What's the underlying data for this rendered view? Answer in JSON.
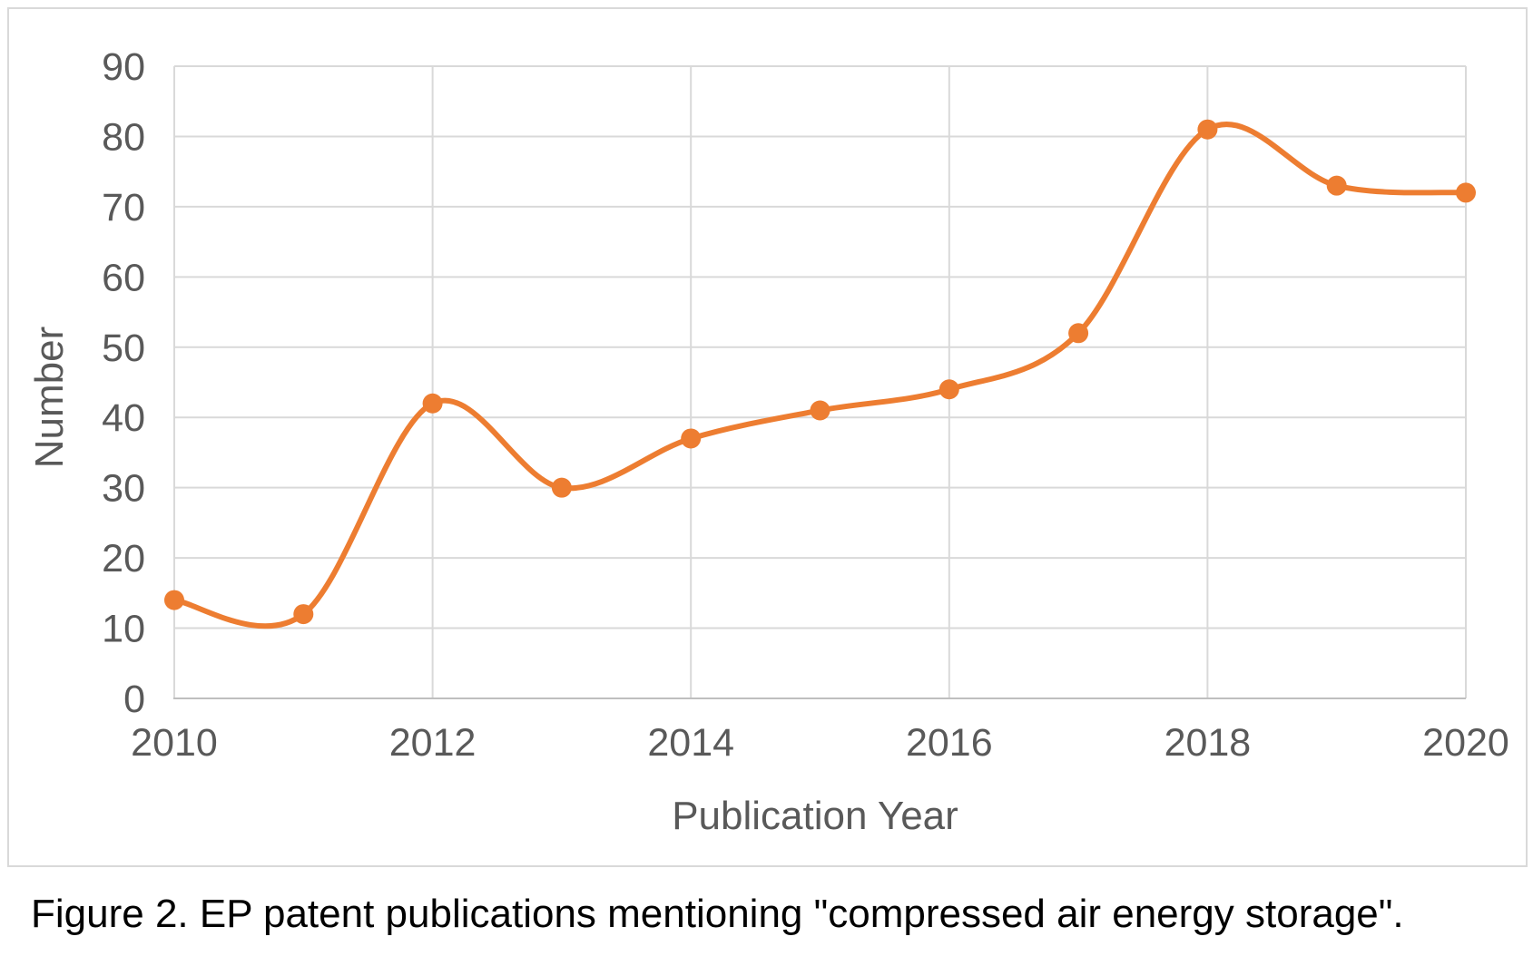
{
  "figure": {
    "caption": "Figure 2. EP patent publications mentioning \"compressed air energy storage\"."
  },
  "chart_data": {
    "type": "line",
    "title": "",
    "xlabel": "Publication Year",
    "ylabel": "Number",
    "x": [
      2010,
      2011,
      2012,
      2013,
      2014,
      2015,
      2016,
      2017,
      2018,
      2019,
      2020
    ],
    "series": [
      {
        "name": "EP patent publications",
        "values": [
          14,
          12,
          42,
          30,
          37,
          41,
          44,
          52,
          81,
          73,
          72
        ]
      }
    ],
    "xlim": [
      2010,
      2020
    ],
    "ylim": [
      0,
      90
    ],
    "ytick_step": 10,
    "xticks": [
      2010,
      2012,
      2014,
      2016,
      2018,
      2020
    ],
    "yticks": [
      0,
      10,
      20,
      30,
      40,
      50,
      60,
      70,
      80,
      90
    ],
    "grid": true,
    "smooth_line": true,
    "marker": "circle",
    "legend_position": "none",
    "colors": {
      "line": "#ED7D31",
      "marker": "#ED7D31",
      "gridline": "#D9D9D9",
      "axis_line": "#BFBFBF",
      "tick_label": "#595959",
      "axis_title": "#595959",
      "caption_text": "#000000",
      "chart_border": "#D9D9D9",
      "background": "#FFFFFF"
    }
  }
}
